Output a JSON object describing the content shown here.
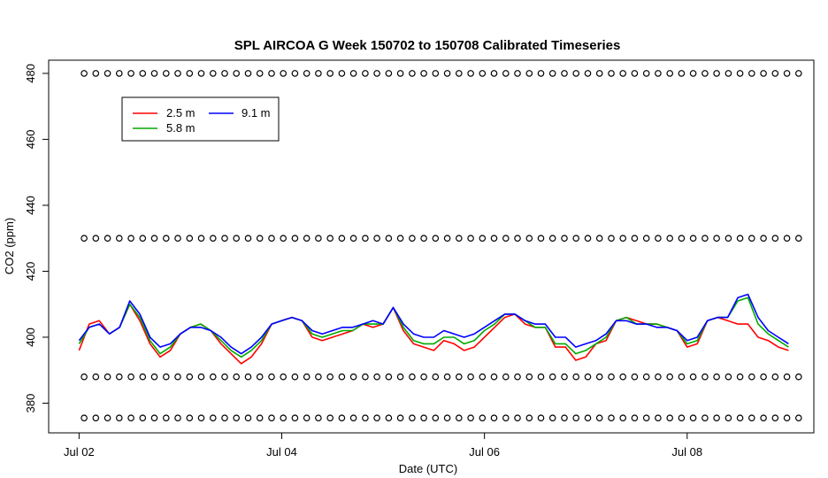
{
  "chart_data": {
    "type": "line",
    "title": "SPL AIRCOA G  Week 150702 to 150708  Calibrated Timeseries",
    "xlabel": "Date (UTC)",
    "ylabel": "CO2 (ppm)",
    "x_unit": "days since Jul 02 00:00 UTC",
    "xlim": [
      -0.3,
      7.25
    ],
    "ylim": [
      371,
      484
    ],
    "x_ticks": [
      {
        "value": 0,
        "label": "Jul 02"
      },
      {
        "value": 2,
        "label": "Jul 04"
      },
      {
        "value": 4,
        "label": "Jul 06"
      },
      {
        "value": 6,
        "label": "Jul 08"
      }
    ],
    "y_ticks": [
      380,
      400,
      420,
      440,
      460,
      480
    ],
    "y_tick_labels": [
      "380",
      "400",
      "420",
      "440",
      "460",
      "480"
    ],
    "grid": false,
    "legend": {
      "position": "top-left",
      "entries": [
        {
          "label": "2.5 m",
          "color": "#ff0000"
        },
        {
          "label": "5.8 m",
          "color": "#00aa00"
        },
        {
          "label": "9.1 m",
          "color": "#0000ff"
        }
      ]
    },
    "series": [
      {
        "name": "2.5 m",
        "color": "#ff0000",
        "x": [
          0.0,
          0.1,
          0.2,
          0.3,
          0.4,
          0.5,
          0.6,
          0.7,
          0.8,
          0.9,
          1.0,
          1.1,
          1.2,
          1.3,
          1.4,
          1.5,
          1.6,
          1.7,
          1.8,
          1.9,
          2.0,
          2.1,
          2.2,
          2.3,
          2.4,
          2.5,
          2.6,
          2.7,
          2.8,
          2.9,
          3.0,
          3.1,
          3.2,
          3.3,
          3.4,
          3.5,
          3.6,
          3.7,
          3.8,
          3.9,
          4.0,
          4.1,
          4.2,
          4.3,
          4.4,
          4.5,
          4.6,
          4.7,
          4.8,
          4.9,
          5.0,
          5.1,
          5.2,
          5.3,
          5.4,
          5.5,
          5.6,
          5.7,
          5.8,
          5.9,
          6.0,
          6.1,
          6.2,
          6.3,
          6.4,
          6.5,
          6.6,
          6.7,
          6.8,
          6.9,
          7.0
        ],
        "y": [
          396,
          404,
          405,
          401,
          403,
          410,
          405,
          398,
          394,
          396,
          401,
          403,
          404,
          402,
          398,
          395,
          392,
          394,
          398,
          404,
          405,
          406,
          405,
          400,
          399,
          400,
          401,
          402,
          404,
          403,
          404,
          409,
          402,
          398,
          397,
          396,
          399,
          398,
          396,
          397,
          400,
          403,
          406,
          407,
          404,
          403,
          403,
          397,
          397,
          393,
          394,
          398,
          399,
          405,
          406,
          405,
          404,
          404,
          403,
          402,
          397,
          398,
          405,
          406,
          405,
          404,
          404,
          400,
          399,
          397,
          396
        ]
      },
      {
        "name": "5.8 m",
        "color": "#00aa00",
        "x": [
          0.0,
          0.1,
          0.2,
          0.3,
          0.4,
          0.5,
          0.6,
          0.7,
          0.8,
          0.9,
          1.0,
          1.1,
          1.2,
          1.3,
          1.4,
          1.5,
          1.6,
          1.7,
          1.8,
          1.9,
          2.0,
          2.1,
          2.2,
          2.3,
          2.4,
          2.5,
          2.6,
          2.7,
          2.8,
          2.9,
          3.0,
          3.1,
          3.2,
          3.3,
          3.4,
          3.5,
          3.6,
          3.7,
          3.8,
          3.9,
          4.0,
          4.1,
          4.2,
          4.3,
          4.4,
          4.5,
          4.6,
          4.7,
          4.8,
          4.9,
          5.0,
          5.1,
          5.2,
          5.3,
          5.4,
          5.5,
          5.6,
          5.7,
          5.8,
          5.9,
          6.0,
          6.1,
          6.2,
          6.3,
          6.4,
          6.5,
          6.6,
          6.7,
          6.8,
          6.9,
          7.0
        ],
        "y": [
          398,
          403,
          404,
          401,
          403,
          410,
          406,
          399,
          395,
          397,
          401,
          403,
          404,
          402,
          399,
          396,
          394,
          396,
          399,
          404,
          405,
          406,
          405,
          401,
          400,
          401,
          402,
          402,
          404,
          404,
          404,
          409,
          403,
          399,
          398,
          398,
          400,
          400,
          398,
          399,
          402,
          404,
          407,
          407,
          405,
          403,
          403,
          398,
          398,
          395,
          396,
          398,
          400,
          405,
          406,
          404,
          404,
          404,
          403,
          402,
          398,
          399,
          405,
          406,
          406,
          411,
          412,
          404,
          401,
          399,
          397
        ]
      },
      {
        "name": "9.1 m",
        "color": "#0000ff",
        "x": [
          0.0,
          0.1,
          0.2,
          0.3,
          0.4,
          0.5,
          0.6,
          0.7,
          0.8,
          0.9,
          1.0,
          1.1,
          1.2,
          1.3,
          1.4,
          1.5,
          1.6,
          1.7,
          1.8,
          1.9,
          2.0,
          2.1,
          2.2,
          2.3,
          2.4,
          2.5,
          2.6,
          2.7,
          2.8,
          2.9,
          3.0,
          3.1,
          3.2,
          3.3,
          3.4,
          3.5,
          3.6,
          3.7,
          3.8,
          3.9,
          4.0,
          4.1,
          4.2,
          4.3,
          4.4,
          4.5,
          4.6,
          4.7,
          4.8,
          4.9,
          5.0,
          5.1,
          5.2,
          5.3,
          5.4,
          5.5,
          5.6,
          5.7,
          5.8,
          5.9,
          6.0,
          6.1,
          6.2,
          6.3,
          6.4,
          6.5,
          6.6,
          6.7,
          6.8,
          6.9,
          7.0
        ],
        "y": [
          399,
          403,
          404,
          401,
          403,
          411,
          407,
          400,
          397,
          398,
          401,
          403,
          403,
          402,
          400,
          397,
          395,
          397,
          400,
          404,
          405,
          406,
          405,
          402,
          401,
          402,
          403,
          403,
          404,
          405,
          404,
          409,
          404,
          401,
          400,
          400,
          402,
          401,
          400,
          401,
          403,
          405,
          407,
          407,
          405,
          404,
          404,
          400,
          400,
          397,
          398,
          399,
          401,
          405,
          405,
          404,
          404,
          403,
          403,
          402,
          399,
          400,
          405,
          406,
          406,
          412,
          413,
          406,
          402,
          400,
          398
        ]
      }
    ],
    "reference_rows": [
      {
        "y": 480,
        "marker": "o",
        "count": 62
      },
      {
        "y": 430,
        "marker": "o",
        "count": 62
      },
      {
        "y": 388,
        "marker": "o",
        "count": 62
      },
      {
        "y": 375.5,
        "marker": "o",
        "count": 62
      }
    ]
  }
}
